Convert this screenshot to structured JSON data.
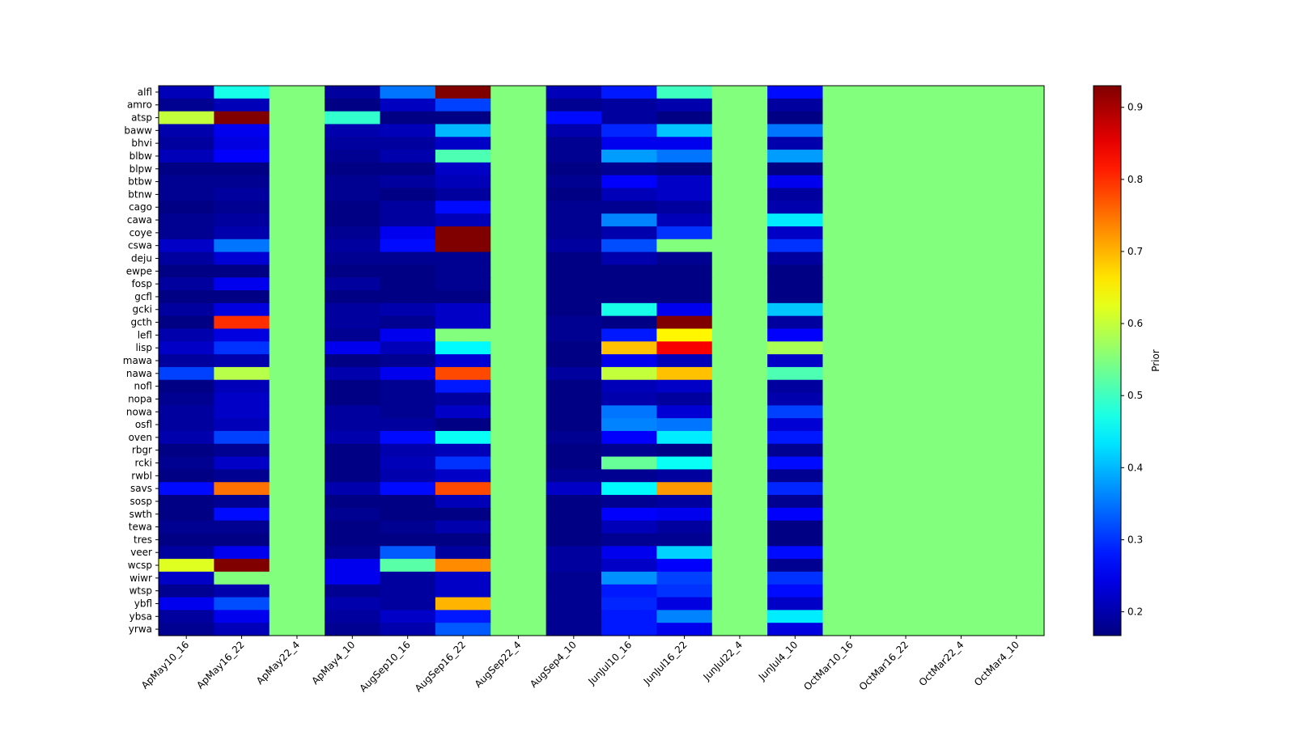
{
  "chart_data": {
    "type": "heatmap",
    "title": "",
    "xlabel": "",
    "ylabel": "",
    "colormap": "jet",
    "vmin": 0.167,
    "vmax": 0.93,
    "colorbar": {
      "label": "Prior",
      "ticks": [
        0.2,
        0.3,
        0.4,
        0.5,
        0.6,
        0.7,
        0.8,
        0.9
      ],
      "tick_labels": [
        "0.2",
        "0.3",
        "0.4",
        "0.5",
        "0.6",
        "0.7",
        "0.8",
        "0.9"
      ]
    },
    "columns": [
      "ApMay10_16",
      "ApMay16_22",
      "ApMay22_4",
      "ApMay4_10",
      "AugSep10_16",
      "AugSep16_22",
      "AugSep22_4",
      "AugSep4_10",
      "JunJul10_16",
      "JunJul16_22",
      "JunJul22_4",
      "JunJul4_10",
      "OctMar10_16",
      "OctMar16_22",
      "OctMar22_4",
      "OctMar4_10"
    ],
    "rows": [
      "alfl",
      "amro",
      "atsp",
      "baww",
      "bhvi",
      "blbw",
      "blpw",
      "btbw",
      "btnw",
      "cago",
      "cawa",
      "coye",
      "cswa",
      "deju",
      "ewpe",
      "fosp",
      "gcfl",
      "gcki",
      "gcth",
      "lefl",
      "lisp",
      "mawa",
      "nawa",
      "nofl",
      "nopa",
      "nowa",
      "osfl",
      "oven",
      "rbgr",
      "rcki",
      "rwbl",
      "savs",
      "sosp",
      "swth",
      "tewa",
      "tres",
      "veer",
      "wcsp",
      "wiwr",
      "wtsp",
      "ybfl",
      "ybsa",
      "yrwa"
    ],
    "values": [
      [
        0.21,
        0.47,
        0.55,
        0.19,
        0.35,
        0.93,
        0.55,
        0.21,
        0.28,
        0.5,
        0.55,
        0.27,
        0.55,
        0.55,
        0.55,
        0.55
      ],
      [
        0.18,
        0.21,
        0.55,
        0.17,
        0.215,
        0.31,
        0.55,
        0.18,
        0.19,
        0.2,
        0.55,
        0.19,
        0.55,
        0.55,
        0.55,
        0.55
      ],
      [
        0.6,
        0.93,
        0.55,
        0.49,
        0.17,
        0.17,
        0.55,
        0.27,
        0.19,
        0.17,
        0.55,
        0.17,
        0.55,
        0.55,
        0.55,
        0.55
      ],
      [
        0.2,
        0.25,
        0.55,
        0.2,
        0.21,
        0.4,
        0.55,
        0.2,
        0.29,
        0.41,
        0.55,
        0.35,
        0.55,
        0.55,
        0.55,
        0.55
      ],
      [
        0.19,
        0.24,
        0.55,
        0.19,
        0.19,
        0.22,
        0.55,
        0.18,
        0.25,
        0.25,
        0.55,
        0.2,
        0.55,
        0.55,
        0.55,
        0.55
      ],
      [
        0.21,
        0.26,
        0.55,
        0.18,
        0.2,
        0.51,
        0.55,
        0.18,
        0.38,
        0.35,
        0.55,
        0.38,
        0.55,
        0.55,
        0.55,
        0.55
      ],
      [
        0.17,
        0.17,
        0.55,
        0.17,
        0.17,
        0.22,
        0.55,
        0.17,
        0.18,
        0.17,
        0.55,
        0.17,
        0.55,
        0.55,
        0.55,
        0.55
      ],
      [
        0.18,
        0.18,
        0.55,
        0.18,
        0.19,
        0.21,
        0.55,
        0.18,
        0.26,
        0.22,
        0.55,
        0.25,
        0.55,
        0.55,
        0.55,
        0.55
      ],
      [
        0.18,
        0.19,
        0.55,
        0.18,
        0.17,
        0.19,
        0.55,
        0.17,
        0.21,
        0.22,
        0.55,
        0.19,
        0.55,
        0.55,
        0.55,
        0.55
      ],
      [
        0.17,
        0.18,
        0.55,
        0.17,
        0.19,
        0.27,
        0.55,
        0.18,
        0.18,
        0.19,
        0.55,
        0.2,
        0.55,
        0.55,
        0.55,
        0.55
      ],
      [
        0.18,
        0.19,
        0.55,
        0.17,
        0.19,
        0.21,
        0.55,
        0.18,
        0.36,
        0.21,
        0.55,
        0.44,
        0.55,
        0.55,
        0.55,
        0.55
      ],
      [
        0.18,
        0.2,
        0.55,
        0.18,
        0.25,
        0.93,
        0.55,
        0.18,
        0.2,
        0.3,
        0.55,
        0.22,
        0.55,
        0.55,
        0.55,
        0.55
      ],
      [
        0.22,
        0.35,
        0.55,
        0.19,
        0.27,
        0.93,
        0.55,
        0.19,
        0.32,
        0.55,
        0.55,
        0.3,
        0.55,
        0.55,
        0.55,
        0.55
      ],
      [
        0.19,
        0.23,
        0.55,
        0.18,
        0.18,
        0.18,
        0.55,
        0.17,
        0.2,
        0.18,
        0.55,
        0.19,
        0.55,
        0.55,
        0.55,
        0.55
      ],
      [
        0.17,
        0.17,
        0.55,
        0.17,
        0.17,
        0.18,
        0.55,
        0.17,
        0.17,
        0.17,
        0.55,
        0.17,
        0.55,
        0.55,
        0.55,
        0.55
      ],
      [
        0.19,
        0.25,
        0.55,
        0.19,
        0.17,
        0.18,
        0.55,
        0.17,
        0.17,
        0.17,
        0.55,
        0.17,
        0.55,
        0.55,
        0.55,
        0.55
      ],
      [
        0.17,
        0.17,
        0.55,
        0.17,
        0.17,
        0.17,
        0.55,
        0.17,
        0.17,
        0.17,
        0.55,
        0.17,
        0.55,
        0.55,
        0.55,
        0.55
      ],
      [
        0.19,
        0.24,
        0.55,
        0.19,
        0.2,
        0.22,
        0.55,
        0.17,
        0.47,
        0.25,
        0.55,
        0.41,
        0.55,
        0.55,
        0.55,
        0.55
      ],
      [
        0.17,
        0.8,
        0.55,
        0.19,
        0.18,
        0.22,
        0.55,
        0.18,
        0.17,
        0.93,
        0.55,
        0.19,
        0.55,
        0.55,
        0.55,
        0.55
      ],
      [
        0.2,
        0.24,
        0.55,
        0.18,
        0.25,
        0.55,
        0.55,
        0.18,
        0.28,
        0.65,
        0.55,
        0.26,
        0.55,
        0.55,
        0.55,
        0.55
      ],
      [
        0.22,
        0.3,
        0.55,
        0.25,
        0.21,
        0.45,
        0.55,
        0.17,
        0.69,
        0.84,
        0.55,
        0.58,
        0.55,
        0.55,
        0.55,
        0.55
      ],
      [
        0.19,
        0.2,
        0.55,
        0.17,
        0.18,
        0.23,
        0.55,
        0.17,
        0.25,
        0.21,
        0.55,
        0.22,
        0.55,
        0.55,
        0.55,
        0.55
      ],
      [
        0.31,
        0.59,
        0.55,
        0.2,
        0.25,
        0.78,
        0.55,
        0.19,
        0.6,
        0.69,
        0.55,
        0.51,
        0.55,
        0.55,
        0.55,
        0.55
      ],
      [
        0.17,
        0.21,
        0.55,
        0.17,
        0.18,
        0.28,
        0.55,
        0.17,
        0.21,
        0.22,
        0.55,
        0.19,
        0.55,
        0.55,
        0.55,
        0.55
      ],
      [
        0.18,
        0.22,
        0.55,
        0.17,
        0.18,
        0.19,
        0.55,
        0.17,
        0.2,
        0.19,
        0.55,
        0.2,
        0.55,
        0.55,
        0.55,
        0.55
      ],
      [
        0.19,
        0.22,
        0.55,
        0.19,
        0.18,
        0.22,
        0.55,
        0.17,
        0.35,
        0.23,
        0.55,
        0.31,
        0.55,
        0.55,
        0.55,
        0.55
      ],
      [
        0.19,
        0.21,
        0.55,
        0.19,
        0.19,
        0.17,
        0.55,
        0.17,
        0.36,
        0.35,
        0.55,
        0.23,
        0.55,
        0.55,
        0.55,
        0.55
      ],
      [
        0.2,
        0.31,
        0.55,
        0.2,
        0.27,
        0.46,
        0.55,
        0.18,
        0.26,
        0.44,
        0.55,
        0.28,
        0.55,
        0.55,
        0.55,
        0.55
      ],
      [
        0.17,
        0.18,
        0.55,
        0.17,
        0.2,
        0.21,
        0.55,
        0.17,
        0.18,
        0.17,
        0.55,
        0.18,
        0.55,
        0.55,
        0.55,
        0.55
      ],
      [
        0.18,
        0.22,
        0.55,
        0.17,
        0.21,
        0.3,
        0.55,
        0.17,
        0.53,
        0.46,
        0.55,
        0.27,
        0.55,
        0.55,
        0.55,
        0.55
      ],
      [
        0.17,
        0.18,
        0.55,
        0.17,
        0.2,
        0.22,
        0.55,
        0.18,
        0.18,
        0.19,
        0.55,
        0.18,
        0.55,
        0.55,
        0.55,
        0.55
      ],
      [
        0.27,
        0.75,
        0.55,
        0.2,
        0.27,
        0.78,
        0.55,
        0.22,
        0.45,
        0.72,
        0.55,
        0.29,
        0.55,
        0.55,
        0.55,
        0.55
      ],
      [
        0.17,
        0.18,
        0.55,
        0.17,
        0.17,
        0.21,
        0.55,
        0.17,
        0.18,
        0.19,
        0.55,
        0.18,
        0.55,
        0.55,
        0.55,
        0.55
      ],
      [
        0.17,
        0.27,
        0.55,
        0.18,
        0.17,
        0.17,
        0.55,
        0.17,
        0.26,
        0.25,
        0.55,
        0.26,
        0.55,
        0.55,
        0.55,
        0.55
      ],
      [
        0.18,
        0.18,
        0.55,
        0.17,
        0.18,
        0.2,
        0.55,
        0.17,
        0.21,
        0.19,
        0.55,
        0.17,
        0.55,
        0.55,
        0.55,
        0.55
      ],
      [
        0.17,
        0.17,
        0.55,
        0.17,
        0.17,
        0.17,
        0.55,
        0.17,
        0.18,
        0.18,
        0.55,
        0.17,
        0.55,
        0.55,
        0.55,
        0.55
      ],
      [
        0.19,
        0.25,
        0.55,
        0.18,
        0.33,
        0.19,
        0.55,
        0.19,
        0.25,
        0.42,
        0.55,
        0.27,
        0.55,
        0.55,
        0.55,
        0.55
      ],
      [
        0.62,
        0.93,
        0.55,
        0.25,
        0.52,
        0.73,
        0.55,
        0.19,
        0.22,
        0.26,
        0.55,
        0.18,
        0.55,
        0.55,
        0.55,
        0.55
      ],
      [
        0.22,
        0.55,
        0.55,
        0.25,
        0.19,
        0.22,
        0.55,
        0.18,
        0.37,
        0.31,
        0.55,
        0.3,
        0.55,
        0.55,
        0.55,
        0.55
      ],
      [
        0.18,
        0.2,
        0.55,
        0.18,
        0.19,
        0.22,
        0.55,
        0.18,
        0.28,
        0.3,
        0.55,
        0.27,
        0.55,
        0.55,
        0.55,
        0.55
      ],
      [
        0.25,
        0.32,
        0.55,
        0.2,
        0.19,
        0.7,
        0.55,
        0.18,
        0.29,
        0.24,
        0.55,
        0.22,
        0.55,
        0.55,
        0.55,
        0.55
      ],
      [
        0.19,
        0.25,
        0.55,
        0.19,
        0.22,
        0.28,
        0.55,
        0.18,
        0.28,
        0.36,
        0.55,
        0.44,
        0.55,
        0.55,
        0.55,
        0.55
      ],
      [
        0.18,
        0.21,
        0.55,
        0.18,
        0.2,
        0.33,
        0.55,
        0.18,
        0.28,
        0.25,
        0.55,
        0.24,
        0.55,
        0.55,
        0.55,
        0.55
      ]
    ]
  }
}
